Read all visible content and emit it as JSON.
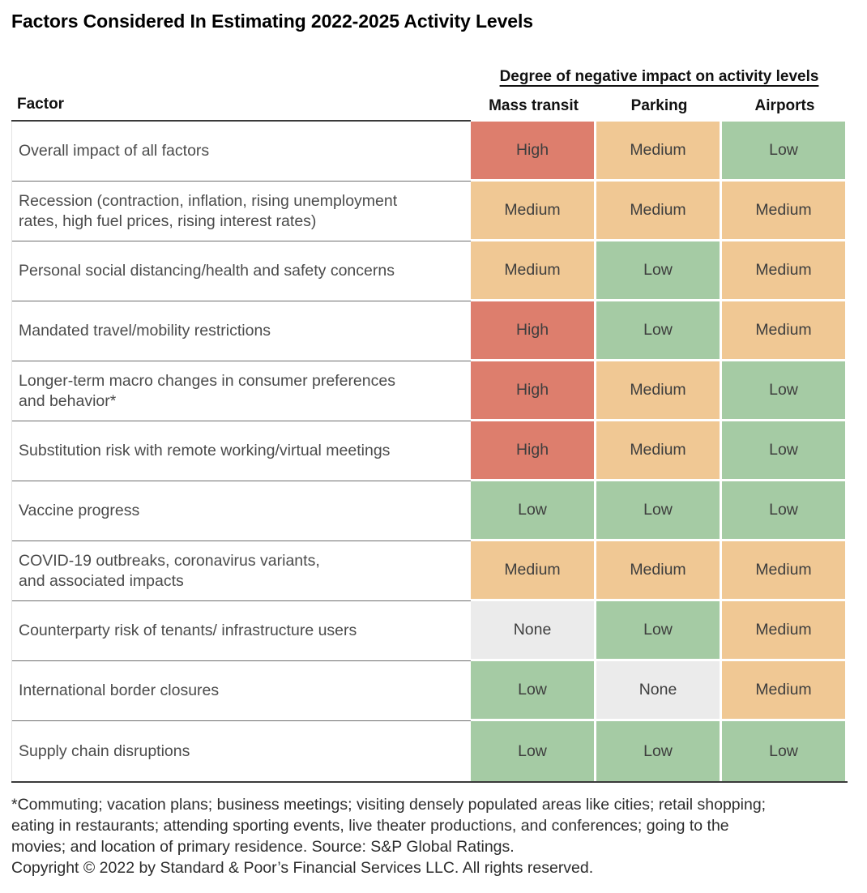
{
  "title": "Factors Considered In Estimating 2022-2025 Activity Levels",
  "header": {
    "group_label": "Degree of negative impact on activity levels",
    "factor_label": "Factor"
  },
  "chart_data": {
    "type": "heatmap",
    "title": "Factors Considered In Estimating 2022-2025 Activity Levels",
    "columns": [
      "Mass transit",
      "Parking",
      "Airports"
    ],
    "value_scale": [
      "None",
      "Low",
      "Medium",
      "High"
    ],
    "value_colors": {
      "High": "#DD7E6D",
      "Medium": "#F0C894",
      "Low": "#A5CBA4",
      "None": "#EBEBEB"
    },
    "rows": [
      {
        "factor": "Overall impact of all factors",
        "values": [
          "High",
          "Medium",
          "Low"
        ]
      },
      {
        "factor": "Recession (contraction, inflation, rising unemployment\nrates, high fuel prices, rising interest rates)",
        "values": [
          "Medium",
          "Medium",
          "Medium"
        ]
      },
      {
        "factor": "Personal social distancing/health and safety concerns",
        "values": [
          "Medium",
          "Low",
          "Medium"
        ]
      },
      {
        "factor": "Mandated travel/mobility restrictions",
        "values": [
          "High",
          "Low",
          "Medium"
        ]
      },
      {
        "factor": "Longer-term macro changes in consumer preferences\nand behavior*",
        "values": [
          "High",
          "Medium",
          "Low"
        ]
      },
      {
        "factor": "Substitution risk with remote working/virtual meetings",
        "values": [
          "High",
          "Medium",
          "Low"
        ]
      },
      {
        "factor": "Vaccine progress",
        "values": [
          "Low",
          "Low",
          "Low"
        ]
      },
      {
        "factor": "COVID-19 outbreaks, coronavirus variants,\nand associated impacts",
        "values": [
          "Medium",
          "Medium",
          "Medium"
        ]
      },
      {
        "factor": "Counterparty risk of tenants/ infrastructure users",
        "values": [
          "None",
          "Low",
          "Medium"
        ]
      },
      {
        "factor": "International border closures",
        "values": [
          "Low",
          "None",
          "Medium"
        ]
      },
      {
        "factor": "Supply chain disruptions",
        "values": [
          "Low",
          "Low",
          "Low"
        ]
      }
    ]
  },
  "footnote": "*Commuting; vacation plans; business meetings; visiting densely populated areas like cities; retail shopping;\neating in restaurants; attending sporting events, live theater productions, and conferences; going to the\nmovies; and location of primary residence. Source: S&P Global Ratings.",
  "copyright": "Copyright © 2022 by Standard & Poor’s Financial Services LLC. All rights reserved."
}
